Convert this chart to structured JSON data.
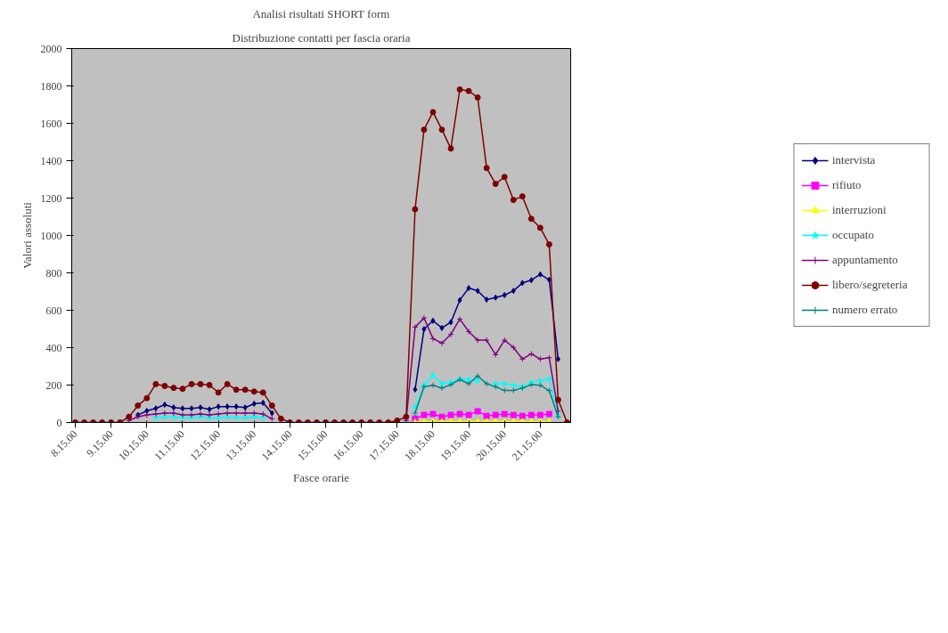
{
  "chart_data": {
    "type": "line",
    "title": "Analisi risultati SHORT form",
    "subtitle": "Distribuzione contatti per fascia oraria",
    "xlabel": "Fasce orarie",
    "ylabel": "Valori assoluti",
    "categories": [
      "8.15.00",
      null,
      null,
      null,
      "9.15.00",
      null,
      null,
      null,
      "10.15.00",
      null,
      null,
      null,
      "11.15.00",
      null,
      null,
      null,
      "12.15.00",
      null,
      null,
      null,
      "13.15.00",
      null,
      null,
      null,
      "14.15.00",
      null,
      null,
      null,
      "15.15.00",
      null,
      null,
      null,
      "16.15.00",
      null,
      null,
      null,
      "17.15.00",
      null,
      null,
      null,
      "18.15.00",
      null,
      null,
      null,
      "19.15.00",
      null,
      null,
      null,
      "20.15.00",
      null,
      null,
      null,
      "21.15.00",
      null,
      null,
      null
    ],
    "series": [
      {
        "name": "intervista",
        "color": "#000080",
        "marker": "diamond",
        "values": [
          null,
          null,
          null,
          null,
          null,
          null,
          null,
          40,
          62,
          75,
          95,
          80,
          75,
          75,
          80,
          70,
          85,
          85,
          85,
          80,
          100,
          105,
          50,
          null,
          null,
          null,
          null,
          null,
          null,
          null,
          null,
          null,
          null,
          null,
          null,
          null,
          null,
          null,
          176,
          499,
          544,
          505,
          536,
          654,
          719,
          704,
          657,
          668,
          681,
          704,
          746,
          761,
          792,
          763,
          339,
          null
        ]
      },
      {
        "name": "rifiuto",
        "color": "#ff00ff",
        "marker": "square",
        "values": [
          null,
          null,
          null,
          null,
          null,
          null,
          null,
          null,
          null,
          null,
          null,
          null,
          null,
          null,
          null,
          null,
          null,
          null,
          null,
          null,
          null,
          null,
          null,
          null,
          null,
          null,
          null,
          null,
          null,
          null,
          null,
          null,
          null,
          null,
          null,
          null,
          null,
          null,
          20,
          40,
          45,
          30,
          40,
          45,
          40,
          60,
          35,
          40,
          45,
          40,
          35,
          40,
          40,
          45,
          null,
          null
        ]
      },
      {
        "name": "interruzioni",
        "color": "#ffff00",
        "marker": "triangle",
        "values": [
          null,
          null,
          null,
          null,
          null,
          null,
          null,
          null,
          null,
          null,
          null,
          null,
          null,
          null,
          null,
          null,
          null,
          null,
          null,
          null,
          null,
          null,
          null,
          null,
          null,
          null,
          null,
          null,
          null,
          null,
          null,
          null,
          null,
          null,
          null,
          null,
          null,
          null,
          2,
          5,
          5,
          5,
          5,
          5,
          5,
          5,
          5,
          5,
          5,
          5,
          5,
          5,
          5,
          5,
          null,
          null
        ]
      },
      {
        "name": "occupato",
        "color": "#00ffff",
        "marker": "star",
        "values": [
          null,
          null,
          null,
          null,
          null,
          null,
          null,
          null,
          null,
          25,
          30,
          30,
          25,
          25,
          30,
          25,
          25,
          30,
          25,
          25,
          30,
          25,
          null,
          null,
          null,
          null,
          null,
          null,
          null,
          null,
          null,
          null,
          null,
          null,
          null,
          null,
          null,
          null,
          80,
          199,
          253,
          207,
          214,
          233,
          230,
          222,
          null,
          207,
          207,
          199,
          191,
          214,
          222,
          233,
          40,
          null
        ]
      },
      {
        "name": "appuntamento",
        "color": "#800080",
        "marker": "cross",
        "values": [
          null,
          null,
          null,
          null,
          null,
          null,
          10,
          30,
          40,
          45,
          50,
          50,
          40,
          40,
          45,
          40,
          45,
          50,
          50,
          50,
          50,
          45,
          20,
          null,
          null,
          null,
          null,
          null,
          null,
          null,
          null,
          null,
          null,
          null,
          null,
          null,
          null,
          10,
          510,
          559,
          448,
          424,
          471,
          553,
          486,
          440,
          440,
          362,
          440,
          401,
          339,
          367,
          339,
          346,
          60,
          null
        ]
      },
      {
        "name": "libero/segreteria",
        "color": "#800000",
        "marker": "circle",
        "values": [
          0,
          0,
          0,
          0,
          0,
          0,
          30,
          90,
          130,
          205,
          195,
          185,
          180,
          205,
          205,
          200,
          160,
          205,
          175,
          175,
          165,
          160,
          90,
          20,
          0,
          0,
          0,
          0,
          0,
          0,
          0,
          0,
          0,
          0,
          0,
          0,
          10,
          30,
          1140,
          1566,
          1660,
          1566,
          1465,
          1781,
          1773,
          1738,
          1361,
          1276,
          1313,
          1190,
          1209,
          1089,
          1041,
          952,
          121,
          0
        ]
      },
      {
        "name": "numero errato",
        "color": "#008080",
        "marker": "cross",
        "values": [
          null,
          null,
          null,
          null,
          null,
          null,
          null,
          null,
          null,
          null,
          null,
          null,
          null,
          null,
          null,
          null,
          null,
          null,
          null,
          null,
          null,
          null,
          null,
          null,
          null,
          null,
          null,
          null,
          null,
          null,
          null,
          null,
          null,
          null,
          null,
          null,
          null,
          null,
          50,
          191,
          199,
          184,
          202,
          230,
          207,
          249,
          207,
          191,
          171,
          171,
          184,
          202,
          199,
          170,
          30,
          null
        ]
      }
    ],
    "ylim": [
      0,
      2000
    ],
    "yticks": [
      0,
      200,
      400,
      600,
      800,
      1000,
      1200,
      1400,
      1600,
      1800,
      2000
    ],
    "grid": false,
    "legend": "right",
    "line_style": "solid"
  }
}
